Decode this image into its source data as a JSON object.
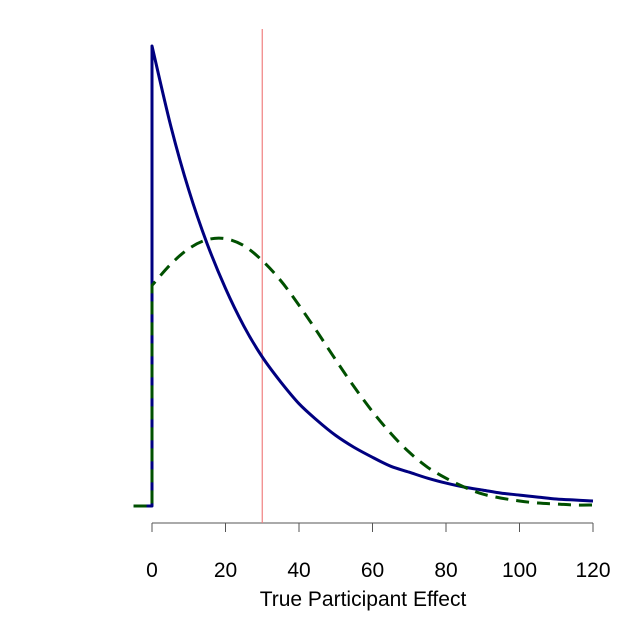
{
  "chart_data": {
    "type": "line",
    "title": "",
    "xlabel": "True Participant Effect",
    "ylabel": "",
    "xlim": [
      -5,
      120
    ],
    "ylim": [
      0,
      0.05
    ],
    "x_ticks": [
      0,
      20,
      40,
      60,
      80,
      100,
      120
    ],
    "x_tick_labels": [
      "0",
      "20",
      "40",
      "60",
      "80",
      "100",
      "120"
    ],
    "y_axis_shown": false,
    "grid": false,
    "legend": "none",
    "reference_line": {
      "orientation": "vertical",
      "x": 30,
      "color": "#f08080"
    },
    "series": [
      {
        "style": "solid",
        "color": "#000080",
        "x": [
          -5,
          0,
          0,
          5,
          10,
          15,
          20,
          25,
          30,
          35,
          40,
          45,
          50,
          55,
          60,
          65,
          70,
          75,
          80,
          85,
          90,
          95,
          100,
          105,
          110,
          115,
          120
        ],
        "y": [
          0,
          0,
          0.0463,
          0.0384,
          0.0318,
          0.0264,
          0.0219,
          0.0181,
          0.015,
          0.0125,
          0.0103,
          0.0086,
          0.0071,
          0.0059,
          0.0049,
          0.004,
          0.0034,
          0.0028,
          0.0023,
          0.0019,
          0.0016,
          0.0013,
          0.0011,
          0.0009,
          0.0007,
          0.0006,
          0.0005
        ]
      },
      {
        "style": "dashed",
        "color": "#005000",
        "x": [
          -5,
          0,
          0,
          5,
          10,
          15,
          20,
          25,
          30,
          35,
          40,
          45,
          50,
          55,
          60,
          65,
          70,
          75,
          80,
          85,
          90,
          95,
          100,
          105,
          110,
          115,
          120
        ],
        "y": [
          0,
          0,
          0.0222,
          0.0243,
          0.0259,
          0.0268,
          0.0269,
          0.0262,
          0.0247,
          0.0227,
          0.0202,
          0.0175,
          0.0147,
          0.012,
          0.0095,
          0.0073,
          0.0054,
          0.0039,
          0.0028,
          0.0019,
          0.0012,
          0.0008,
          0.0005,
          0.0003,
          0.0002,
          0.0001,
          0.0001
        ]
      }
    ]
  }
}
